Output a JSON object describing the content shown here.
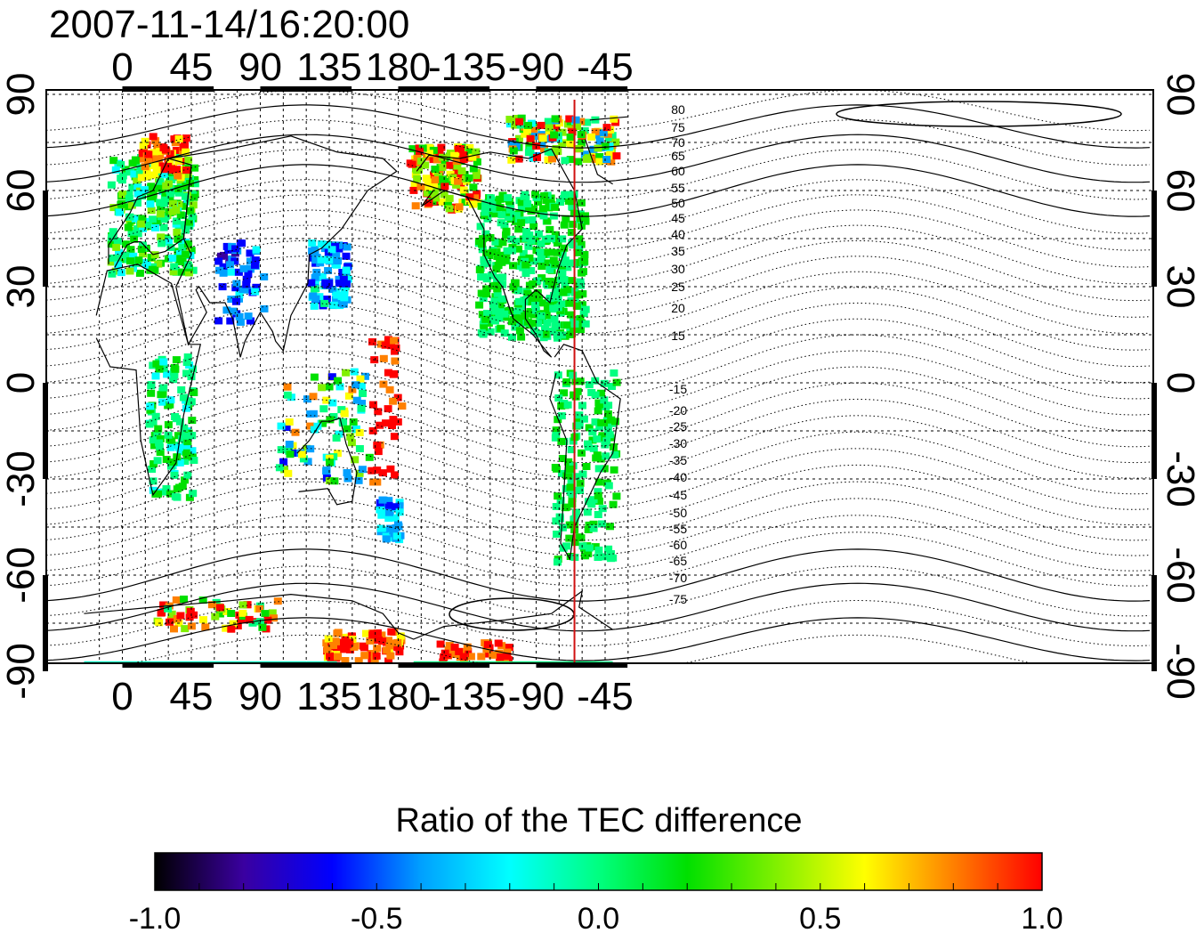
{
  "timestamp": "2007-11-14/16:20:00",
  "map": {
    "top_lon_ticks": [
      "0",
      "45",
      "90",
      "135",
      "180",
      "-135",
      "-90",
      "-45"
    ],
    "bottom_lon_ticks": [
      "0",
      "45",
      "90",
      "135",
      "180",
      "-135",
      "-90",
      "-45"
    ],
    "lat_ticks": [
      "90",
      "60",
      "30",
      "0",
      "-30",
      "-60",
      "-90"
    ],
    "contour_labels_north": [
      "80",
      "75",
      "70",
      "65",
      "60",
      "55",
      "50",
      "45",
      "40",
      "35",
      "30",
      "25",
      "20",
      "15"
    ],
    "contour_labels_south": [
      "-15",
      "-20",
      "-25",
      "-30",
      "-35",
      "-40",
      "-45",
      "-50",
      "-55",
      "-60",
      "-65",
      "-70",
      "-75"
    ],
    "terminator_longitude": -65,
    "colors": {
      "terminator": "#d01010",
      "coast": "#000000"
    }
  },
  "colorbar": {
    "title": "Ratio of the TEC difference",
    "tick_labels": [
      "-1.0",
      "-0.5",
      "0.0",
      "0.5",
      "1.0"
    ],
    "range": [
      -1.0,
      1.0
    ],
    "stops": [
      "#000000",
      "#3a00a0",
      "#0000ff",
      "#00a0ff",
      "#00ffff",
      "#00ff80",
      "#00e000",
      "#80f000",
      "#ffff00",
      "#ff8000",
      "#ff0000"
    ]
  }
}
